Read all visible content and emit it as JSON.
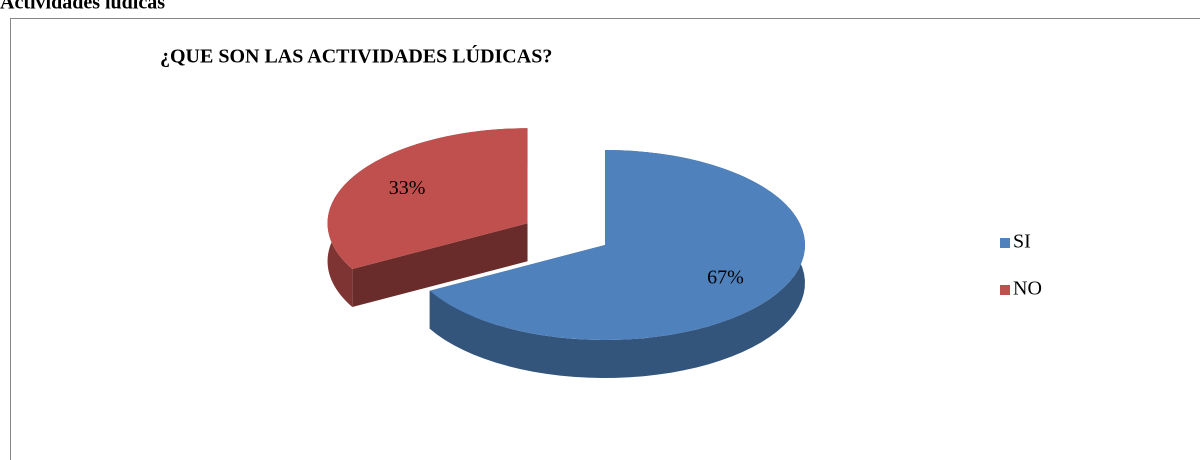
{
  "heading": "Actividades lúdicas",
  "chart_data": {
    "type": "pie3d",
    "title": "¿QUE SON LAS ACTIVIDADES LÚDICAS?",
    "categories": [
      "SI",
      "NO"
    ],
    "values": [
      67,
      33
    ],
    "value_labels": [
      "67%",
      "33%"
    ],
    "colors": [
      "#4f81bd",
      "#c0504d"
    ],
    "legend": "right"
  }
}
